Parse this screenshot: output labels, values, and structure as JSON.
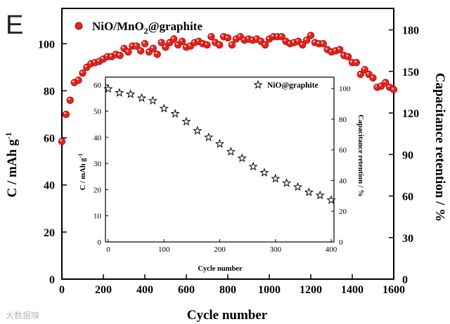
{
  "panel_label": "E",
  "watermark": "大数据嗅",
  "colors": {
    "main_marker": "#e8231b",
    "main_marker_edge": "#a01010",
    "inset_marker": "#ffffff",
    "axis": "#000000"
  },
  "chart_data": [
    {
      "id": "main",
      "type": "scatter",
      "xlabel": "Cycle number",
      "ylabel": "C / mAh g",
      "ylabel_superscript": "-1",
      "y2label": "Capacitance retention / %",
      "xlim": [
        0,
        1600
      ],
      "ylim": [
        0,
        115
      ],
      "y2lim": [
        0,
        195.5
      ],
      "xticks": [
        0,
        200,
        400,
        600,
        800,
        1000,
        1200,
        1400,
        1600
      ],
      "yticks": [
        0,
        20,
        40,
        60,
        80,
        100
      ],
      "y2ticks": [
        0,
        30,
        60,
        90,
        120,
        150,
        180
      ],
      "legend": "top-left",
      "series": [
        {
          "name": "NiO/MnO",
          "name_subscript": "2",
          "name_suffix": "@graphite",
          "marker": "circle",
          "x": [
            0,
            20,
            40,
            60,
            80,
            100,
            120,
            140,
            160,
            180,
            200,
            220,
            240,
            260,
            280,
            300,
            320,
            340,
            360,
            380,
            400,
            420,
            440,
            460,
            480,
            500,
            520,
            540,
            560,
            580,
            600,
            620,
            640,
            660,
            680,
            700,
            720,
            740,
            760,
            780,
            800,
            820,
            840,
            860,
            880,
            900,
            920,
            940,
            960,
            980,
            1000,
            1020,
            1040,
            1060,
            1080,
            1100,
            1120,
            1140,
            1160,
            1180,
            1200,
            1220,
            1240,
            1260,
            1280,
            1300,
            1320,
            1340,
            1360,
            1380,
            1400,
            1420,
            1440,
            1460,
            1480,
            1500,
            1520,
            1540,
            1560,
            1580,
            1600
          ],
          "y": [
            58.5,
            70,
            76,
            83.5,
            84.5,
            87.5,
            90,
            91.5,
            92,
            92.5,
            93.5,
            94.5,
            94.5,
            95.5,
            95,
            98,
            96.5,
            99,
            99,
            97,
            100,
            96.5,
            98,
            95.5,
            100.5,
            98.5,
            100.5,
            102,
            99.5,
            101,
            98.5,
            99,
            100.5,
            101,
            100,
            99.5,
            103,
            100.5,
            99.5,
            103,
            102.5,
            99.5,
            102,
            103,
            101.5,
            102,
            101.5,
            102,
            101,
            99.5,
            102,
            103,
            103,
            103,
            101,
            100,
            100.5,
            101,
            99.5,
            101.5,
            103.5,
            100.5,
            100,
            100,
            97.5,
            96.5,
            97,
            97.5,
            95,
            94.5,
            92,
            92,
            87,
            89,
            87,
            85.5,
            81.5,
            82,
            83.5,
            81.5,
            80.5
          ]
        }
      ]
    },
    {
      "id": "inset",
      "type": "scatter",
      "xlabel": "Cycle number",
      "ylabel": "C / mAh g",
      "ylabel_superscript": "-1",
      "y2label": "Capacitance retention / %",
      "xlim": [
        -5,
        405
      ],
      "ylim": [
        0,
        63
      ],
      "y2lim": [
        0,
        107.4
      ],
      "xticks": [
        0,
        100,
        200,
        300,
        400
      ],
      "yticks": [
        0,
        10,
        20,
        30,
        40,
        50,
        60
      ],
      "y2ticks": [
        0,
        20,
        40,
        60,
        80,
        100
      ],
      "legend": "top-right",
      "series": [
        {
          "name": "NiO@graphite",
          "marker": "star",
          "x": [
            0,
            20,
            40,
            60,
            80,
            100,
            120,
            140,
            160,
            180,
            200,
            220,
            240,
            260,
            280,
            300,
            320,
            340,
            360,
            380,
            400
          ],
          "y": [
            58.5,
            57,
            56.5,
            55,
            54,
            51,
            49,
            46,
            42.5,
            40,
            37.5,
            34.5,
            32,
            28.8,
            26.5,
            24.2,
            22.5,
            21,
            19,
            17.8,
            16
          ]
        }
      ]
    }
  ]
}
